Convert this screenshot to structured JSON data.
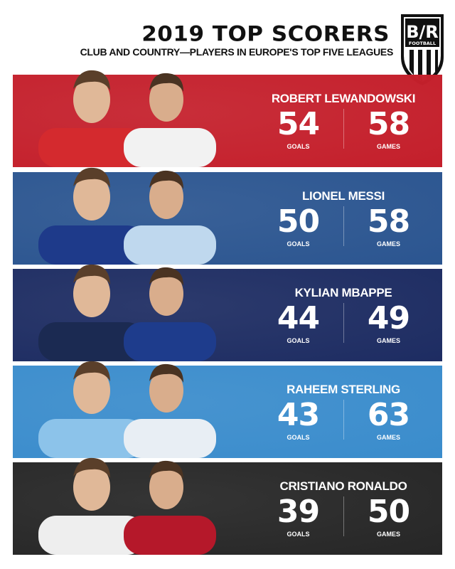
{
  "header": {
    "title": "2019 TOP SCORERS",
    "subtitle": "CLUB AND COUNTRY—PLAYERS IN EUROPE'S TOP FIVE LEAGUES",
    "logo_text": "B/R FOOTBALL"
  },
  "labels": {
    "goals": "GOALS",
    "games": "GAMES"
  },
  "players": [
    {
      "name": "ROBERT LEWANDOWSKI",
      "goals": "54",
      "games": "58",
      "color": "#c41f2b",
      "shirt1": "#d42a2e",
      "shirt2": "#f2f2f2"
    },
    {
      "name": "LIONEL MESSI",
      "goals": "50",
      "games": "58",
      "color": "#2b5590",
      "shirt1": "#1e3a8a",
      "shirt2": "#bfd8ee"
    },
    {
      "name": "KYLIAN MBAPPE",
      "goals": "44",
      "games": "49",
      "color": "#1d2c62",
      "shirt1": "#1b2a52",
      "shirt2": "#1e3c8c"
    },
    {
      "name": "RAHEEM STERLING",
      "goals": "43",
      "games": "63",
      "color": "#3a8ccc",
      "shirt1": "#8cc3ea",
      "shirt2": "#e8eef4"
    },
    {
      "name": "CRISTIANO RONALDO",
      "goals": "39",
      "games": "50",
      "color": "#262626",
      "shirt1": "#eeeeee",
      "shirt2": "#b5182a"
    }
  ]
}
